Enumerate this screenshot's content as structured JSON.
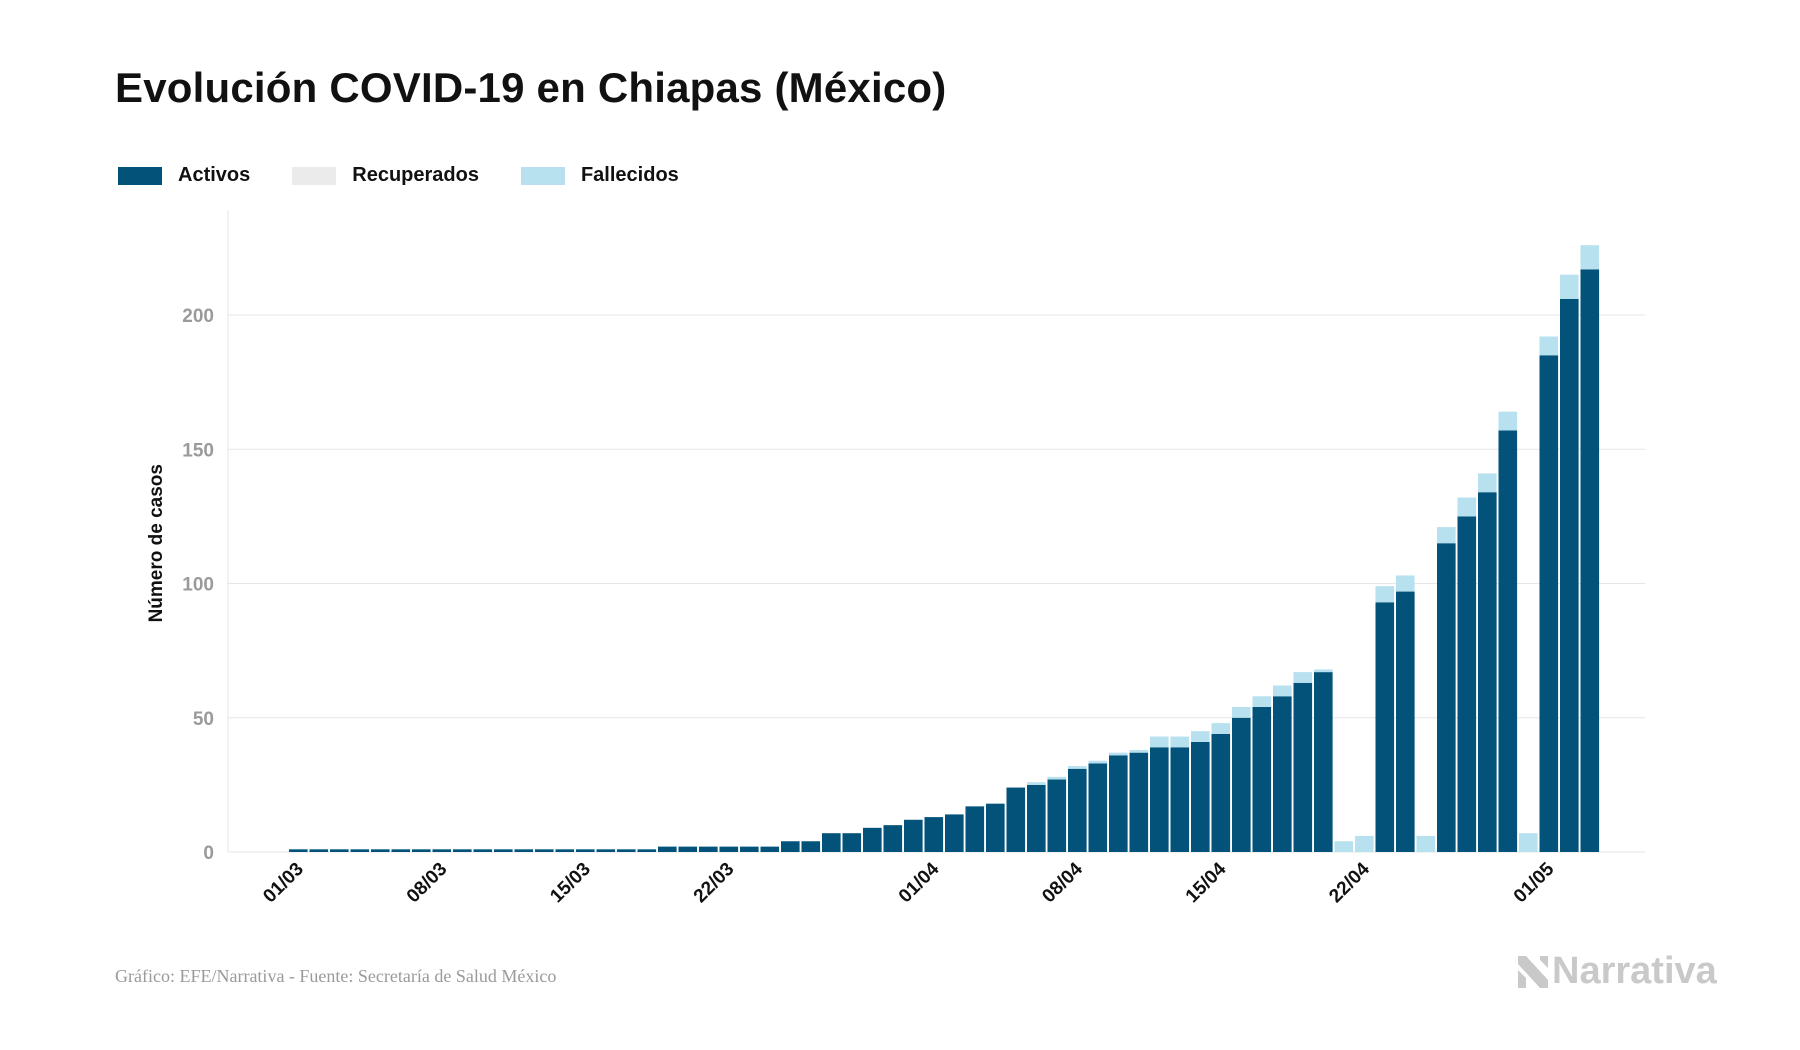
{
  "title": "Evolución COVID-19 en Chiapas (México)",
  "footer": {
    "source": "Gráfico: EFE/Narrativa - Fuente: Secretaría de Salud México",
    "brand": "Narrativa"
  },
  "colors": {
    "activos": "#02527a",
    "recuperados": "#ebebeb",
    "fallecidos": "#b7e1ee",
    "grid": "#e6e6e6",
    "tick": "#9a9a9a",
    "brand": "#c9c9c9"
  },
  "chart_data": {
    "type": "bar",
    "stacked": true,
    "title": "Evolución COVID-19 en Chiapas (México)",
    "xlabel": "",
    "ylabel": "Número de casos",
    "ylim": [
      0,
      230
    ],
    "yticks": [
      0,
      50,
      100,
      150,
      200
    ],
    "grid": true,
    "legend_position": "top-left",
    "xticks": [
      "01/03",
      "08/03",
      "15/03",
      "22/03",
      "01/04",
      "08/04",
      "15/04",
      "22/04",
      "01/05"
    ],
    "categories": [
      "01/03",
      "02/03",
      "03/03",
      "04/03",
      "05/03",
      "06/03",
      "07/03",
      "08/03",
      "09/03",
      "10/03",
      "11/03",
      "12/03",
      "13/03",
      "14/03",
      "15/03",
      "16/03",
      "17/03",
      "18/03",
      "19/03",
      "20/03",
      "21/03",
      "22/03",
      "23/03",
      "24/03",
      "25/03",
      "26/03",
      "27/03",
      "28/03",
      "29/03",
      "30/03",
      "31/03",
      "01/04",
      "02/04",
      "03/04",
      "04/04",
      "05/04",
      "06/04",
      "07/04",
      "08/04",
      "09/04",
      "10/04",
      "11/04",
      "12/04",
      "13/04",
      "14/04",
      "15/04",
      "16/04",
      "17/04",
      "18/04",
      "19/04",
      "20/04",
      "21/04",
      "22/04",
      "23/04",
      "24/04",
      "25/04",
      "26/04",
      "27/04",
      "28/04",
      "29/04",
      "30/04",
      "01/05",
      "02/05",
      "03/05"
    ],
    "series": [
      {
        "name": "Activos",
        "values": [
          1,
          1,
          1,
          1,
          1,
          1,
          1,
          1,
          1,
          1,
          1,
          1,
          1,
          1,
          1,
          1,
          1,
          1,
          2,
          2,
          2,
          2,
          2,
          2,
          4,
          4,
          7,
          7,
          9,
          10,
          12,
          13,
          14,
          17,
          18,
          24,
          25,
          27,
          31,
          33,
          36,
          37,
          39,
          39,
          41,
          44,
          50,
          54,
          58,
          63,
          67,
          0,
          0,
          93,
          97,
          0,
          115,
          125,
          134,
          157,
          0,
          185,
          206,
          217
        ]
      },
      {
        "name": "Recuperados",
        "values": [
          0,
          0,
          0,
          0,
          0,
          0,
          0,
          0,
          0,
          0,
          0,
          0,
          0,
          0,
          0,
          0,
          0,
          0,
          0,
          0,
          0,
          0,
          0,
          0,
          0,
          0,
          0,
          0,
          0,
          0,
          0,
          0,
          0,
          0,
          0,
          0,
          0,
          0,
          0,
          0,
          0,
          0,
          0,
          0,
          0,
          0,
          0,
          0,
          0,
          0,
          0,
          0,
          0,
          0,
          0,
          0,
          0,
          0,
          0,
          0,
          0,
          0,
          0,
          0
        ]
      },
      {
        "name": "Fallecidos",
        "values": [
          0,
          0,
          0,
          0,
          0,
          0,
          0,
          0,
          0,
          0,
          0,
          0,
          0,
          0,
          0,
          0,
          0,
          0,
          0,
          0,
          0,
          0,
          0,
          0,
          0,
          0,
          0,
          0,
          0,
          0,
          0,
          0,
          0,
          0,
          0,
          0,
          1,
          1,
          1,
          1,
          1,
          1,
          4,
          4,
          4,
          4,
          4,
          4,
          4,
          4,
          1,
          4,
          6,
          6,
          6,
          6,
          6,
          7,
          7,
          7,
          7,
          7,
          9,
          9
        ]
      }
    ]
  }
}
